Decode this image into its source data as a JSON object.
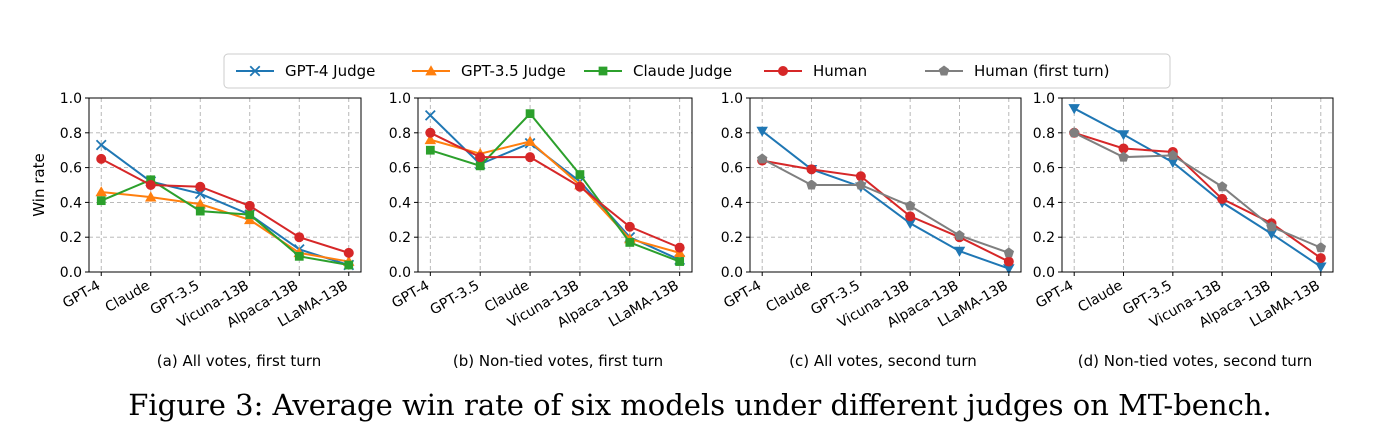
{
  "figure_caption": "Figure 3: Average win rate of six models under different judges on MT-bench.",
  "legend": [
    {
      "label": "GPT-4 Judge",
      "color": "#1f77b4",
      "marker": "x"
    },
    {
      "label": "GPT-3.5 Judge",
      "color": "#ff7f0e",
      "marker": "triangle-up"
    },
    {
      "label": "Claude Judge",
      "color": "#2ca02c",
      "marker": "square"
    },
    {
      "label": "Human",
      "color": "#d62728",
      "marker": "circle"
    },
    {
      "label": "Human (first turn)",
      "color": "#7f7f7f",
      "marker": "pentagon"
    }
  ],
  "chart_data": [
    {
      "type": "line",
      "caption": "(a) All votes, first turn",
      "ylabel": "Win rate",
      "ylim": [
        0,
        1
      ],
      "yticks": [
        "0.0",
        "0.2",
        "0.4",
        "0.6",
        "0.8",
        "1.0"
      ],
      "grid": true,
      "categories": [
        "GPT-4",
        "Claude",
        "GPT-3.5",
        "Vicuna-13B",
        "Alpaca-13B",
        "LLaMA-13B"
      ],
      "series": [
        {
          "name": "GPT-4 Judge",
          "color": "#1f77b4",
          "marker": "x",
          "values": [
            0.73,
            0.52,
            0.45,
            0.33,
            0.13,
            0.04
          ]
        },
        {
          "name": "GPT-3.5 Judge",
          "color": "#ff7f0e",
          "marker": "triangle-up",
          "values": [
            0.46,
            0.43,
            0.39,
            0.3,
            0.11,
            0.06
          ]
        },
        {
          "name": "Claude Judge",
          "color": "#2ca02c",
          "marker": "square",
          "values": [
            0.41,
            0.53,
            0.35,
            0.33,
            0.09,
            0.04
          ]
        },
        {
          "name": "Human",
          "color": "#d62728",
          "marker": "circle",
          "values": [
            0.65,
            0.5,
            0.49,
            0.38,
            0.2,
            0.11
          ]
        }
      ]
    },
    {
      "type": "line",
      "caption": "(b) Non-tied votes, first turn",
      "ylabel": "",
      "ylim": [
        0,
        1
      ],
      "yticks": [
        "0.0",
        "0.2",
        "0.4",
        "0.6",
        "0.8",
        "1.0"
      ],
      "grid": true,
      "categories": [
        "GPT-4",
        "GPT-3.5",
        "Claude",
        "Vicuna-13B",
        "Alpaca-13B",
        "LLaMA-13B"
      ],
      "series": [
        {
          "name": "GPT-4 Judge",
          "color": "#1f77b4",
          "marker": "x",
          "values": [
            0.9,
            0.62,
            0.74,
            0.52,
            0.2,
            0.07
          ]
        },
        {
          "name": "GPT-3.5 Judge",
          "color": "#ff7f0e",
          "marker": "triangle-up",
          "values": [
            0.76,
            0.68,
            0.75,
            0.5,
            0.19,
            0.11
          ]
        },
        {
          "name": "Claude Judge",
          "color": "#2ca02c",
          "marker": "square",
          "values": [
            0.7,
            0.61,
            0.91,
            0.56,
            0.17,
            0.06
          ]
        },
        {
          "name": "Human",
          "color": "#d62728",
          "marker": "circle",
          "values": [
            0.8,
            0.66,
            0.66,
            0.49,
            0.26,
            0.14
          ]
        }
      ]
    },
    {
      "type": "line",
      "caption": "(c) All votes, second turn",
      "ylabel": "",
      "ylim": [
        0,
        1
      ],
      "yticks": [
        "0.0",
        "0.2",
        "0.4",
        "0.6",
        "0.8",
        "1.0"
      ],
      "grid": true,
      "categories": [
        "GPT-4",
        "Claude",
        "GPT-3.5",
        "Vicuna-13B",
        "Alpaca-13B",
        "LLaMA-13B"
      ],
      "series": [
        {
          "name": "GPT-4 Judge",
          "color": "#1f77b4",
          "marker": "triangle-down",
          "values": [
            0.81,
            0.59,
            0.49,
            0.28,
            0.12,
            0.02
          ]
        },
        {
          "name": "Human",
          "color": "#d62728",
          "marker": "circle",
          "values": [
            0.64,
            0.59,
            0.55,
            0.32,
            0.2,
            0.06
          ]
        },
        {
          "name": "Human (first turn)",
          "color": "#7f7f7f",
          "marker": "pentagon",
          "values": [
            0.65,
            0.5,
            0.5,
            0.38,
            0.21,
            0.11
          ]
        }
      ]
    },
    {
      "type": "line",
      "caption": "(d) Non-tied votes, second turn",
      "ylabel": "",
      "ylim": [
        0,
        1
      ],
      "yticks": [
        "0.0",
        "0.2",
        "0.4",
        "0.6",
        "0.8",
        "1.0"
      ],
      "grid": true,
      "categories": [
        "GPT-4",
        "Claude",
        "GPT-3.5",
        "Vicuna-13B",
        "Alpaca-13B",
        "LLaMA-13B"
      ],
      "series": [
        {
          "name": "GPT-4 Judge",
          "color": "#1f77b4",
          "marker": "triangle-down",
          "values": [
            0.94,
            0.79,
            0.63,
            0.4,
            0.22,
            0.03
          ]
        },
        {
          "name": "Human",
          "color": "#d62728",
          "marker": "circle",
          "values": [
            0.8,
            0.71,
            0.69,
            0.42,
            0.28,
            0.08
          ]
        },
        {
          "name": "Human (first turn)",
          "color": "#7f7f7f",
          "marker": "pentagon",
          "values": [
            0.8,
            0.66,
            0.67,
            0.49,
            0.26,
            0.14
          ]
        }
      ]
    }
  ]
}
